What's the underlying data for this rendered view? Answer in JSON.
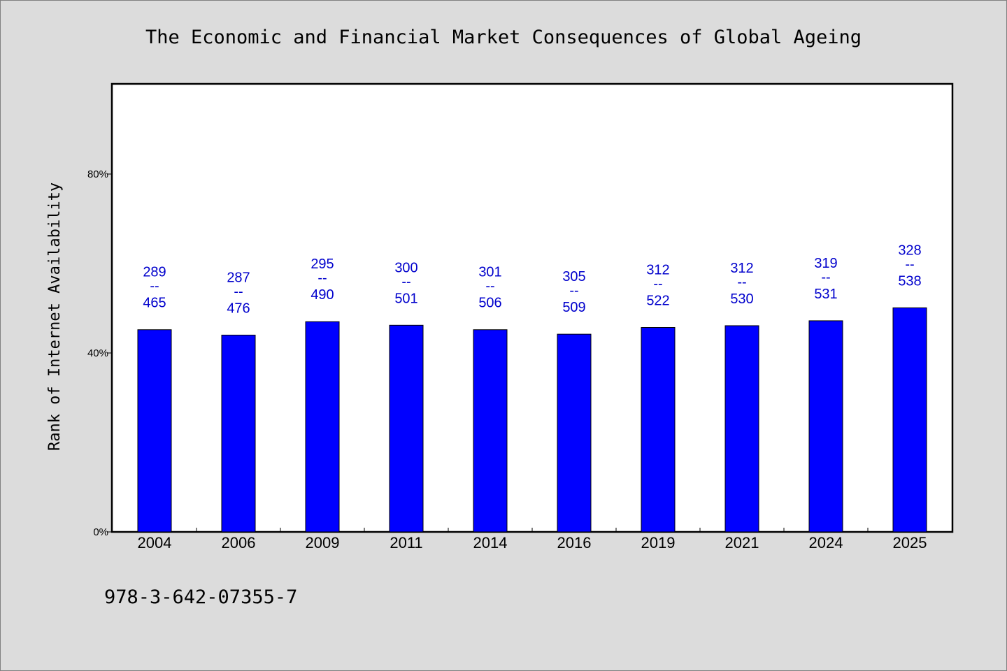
{
  "chart_data": {
    "type": "bar",
    "title": "The Economic and Financial Market Consequences of Global Ageing",
    "ylabel": "Rank of Internet Availability",
    "xlabel": "",
    "categories": [
      "2004",
      "2006",
      "2009",
      "2011",
      "2014",
      "2016",
      "2019",
      "2021",
      "2024",
      "2025"
    ],
    "values": [
      45.2,
      44.0,
      47.0,
      46.2,
      45.2,
      44.2,
      45.7,
      46.1,
      47.2,
      50.1
    ],
    "value_unit": "%",
    "data_labels": [
      {
        "top": "289",
        "sep": "--",
        "bottom": "465"
      },
      {
        "top": "287",
        "sep": "--",
        "bottom": "476"
      },
      {
        "top": "295",
        "sep": "--",
        "bottom": "490"
      },
      {
        "top": "300",
        "sep": "--",
        "bottom": "501"
      },
      {
        "top": "301",
        "sep": "--",
        "bottom": "506"
      },
      {
        "top": "305",
        "sep": "--",
        "bottom": "509"
      },
      {
        "top": "312",
        "sep": "--",
        "bottom": "522"
      },
      {
        "top": "312",
        "sep": "--",
        "bottom": "530"
      },
      {
        "top": "319",
        "sep": "--",
        "bottom": "531"
      },
      {
        "top": "328",
        "sep": "--",
        "bottom": "538"
      }
    ],
    "ylim": [
      0,
      100
    ],
    "yticks": [
      {
        "value": 0,
        "label": "0%"
      },
      {
        "value": 40,
        "label": "40%"
      },
      {
        "value": 80,
        "label": "80%"
      }
    ],
    "grid": false,
    "legend": "none",
    "colors": {
      "bar": "#0000ff",
      "bar_edge": "#000000",
      "label": "#0000cc",
      "background": "#dcdcdc",
      "plot_background": "#ffffff"
    }
  },
  "footer": {
    "isbn": "978-3-642-07355-7"
  }
}
